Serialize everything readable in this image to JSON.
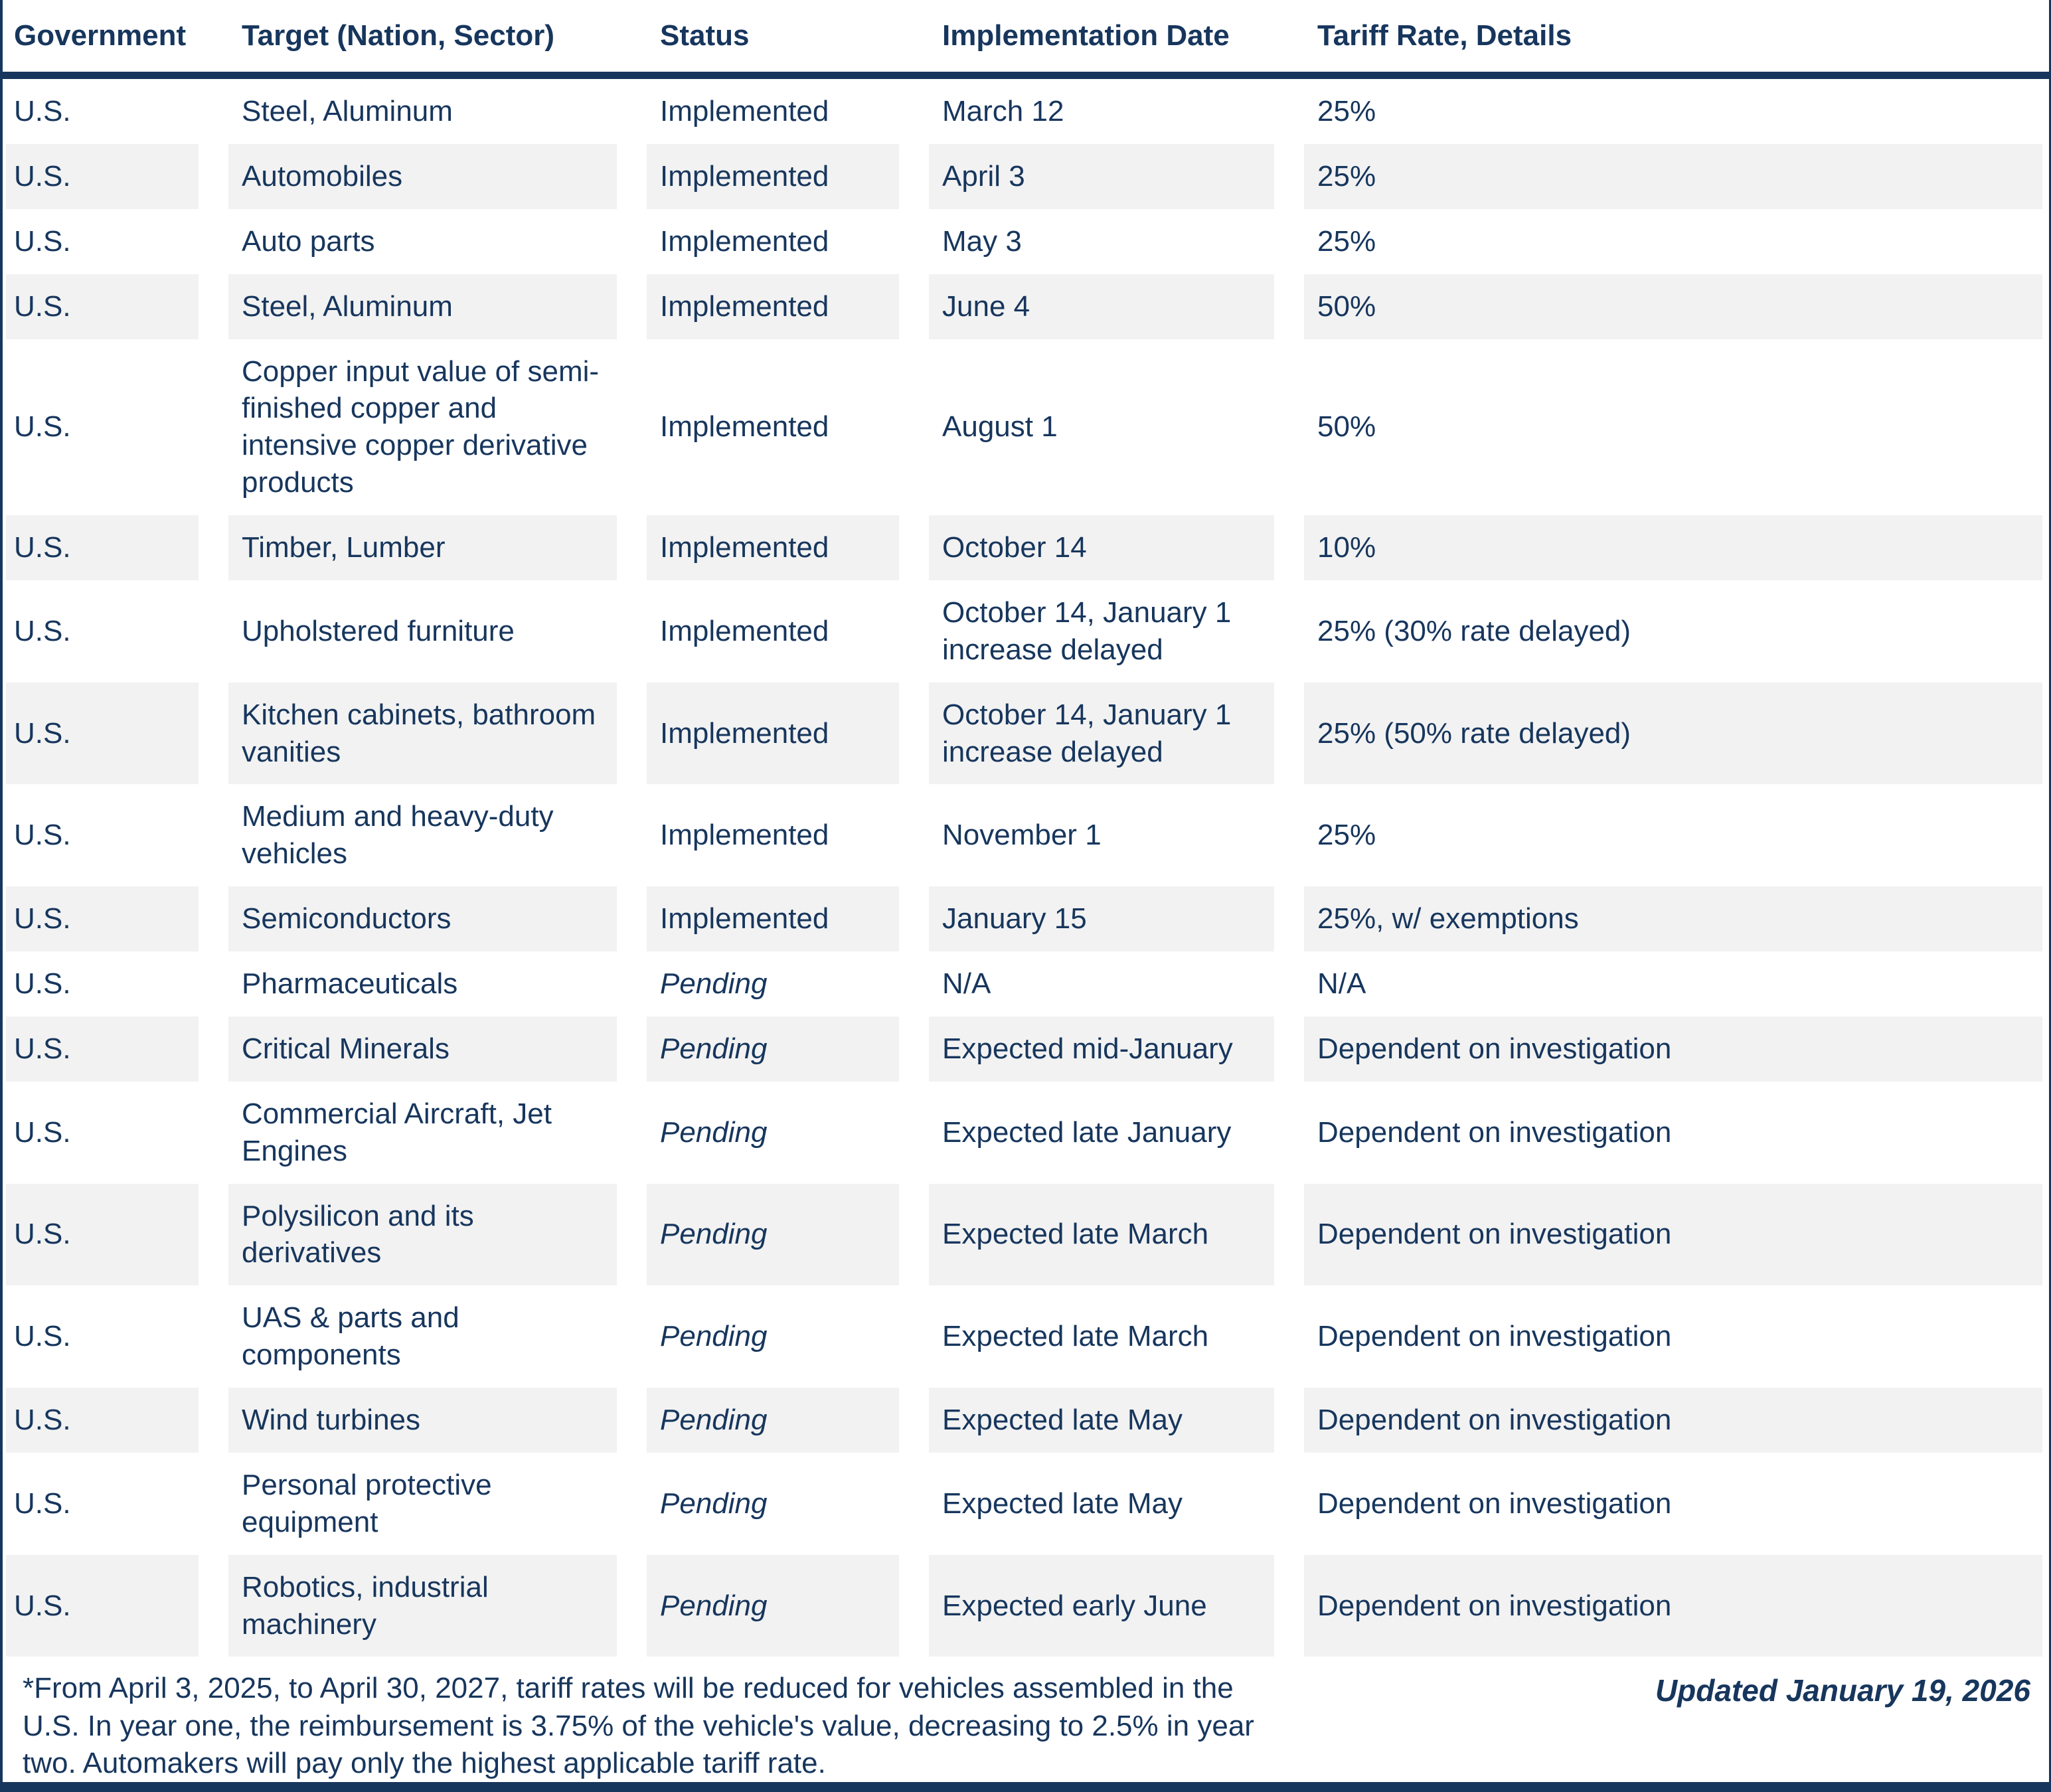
{
  "colors": {
    "navy": "#17365d",
    "row_alt": "#f2f2f2",
    "background": "#ffffff"
  },
  "presentation": {
    "italic_status": "Pending"
  },
  "chart_data": {
    "type": "table",
    "columns": [
      "Government",
      "Target (Nation, Sector)",
      "Status",
      "Implementation Date",
      "Tariff Rate, Details"
    ],
    "rows": [
      [
        "U.S.",
        "Steel, Aluminum",
        "Implemented",
        "March 12",
        "25%"
      ],
      [
        "U.S.",
        "Automobiles",
        "Implemented",
        "April 3",
        "25%"
      ],
      [
        "U.S.",
        "Auto parts",
        "Implemented",
        "May 3",
        "25%"
      ],
      [
        "U.S.",
        "Steel, Aluminum",
        "Implemented",
        "June 4",
        "50%"
      ],
      [
        "U.S.",
        "Copper input value of semi-finished copper and intensive copper derivative products",
        "Implemented",
        "August 1",
        "50%"
      ],
      [
        "U.S.",
        "Timber, Lumber",
        "Implemented",
        "October 14",
        "10%"
      ],
      [
        "U.S.",
        "Upholstered furniture",
        "Implemented",
        "October 14, January 1 increase delayed",
        "25% (30% rate delayed)"
      ],
      [
        "U.S.",
        "Kitchen cabinets, bathroom vanities",
        "Implemented",
        "October 14, January 1 increase delayed",
        "25% (50% rate delayed)"
      ],
      [
        "U.S.",
        "Medium and heavy-duty vehicles",
        "Implemented",
        "November 1",
        "25%"
      ],
      [
        "U.S.",
        "Semiconductors",
        "Implemented",
        "January 15",
        "25%, w/ exemptions"
      ],
      [
        "U.S.",
        "Pharmaceuticals",
        "Pending",
        "N/A",
        "N/A"
      ],
      [
        "U.S.",
        "Critical Minerals",
        "Pending",
        "Expected mid-January",
        "Dependent on investigation"
      ],
      [
        "U.S.",
        "Commercial Aircraft, Jet Engines",
        "Pending",
        "Expected late January",
        "Dependent on investigation"
      ],
      [
        "U.S.",
        "Polysilicon and its derivatives",
        "Pending",
        "Expected late March",
        "Dependent on investigation"
      ],
      [
        "U.S.",
        "UAS & parts and components",
        "Pending",
        "Expected late March",
        "Dependent on investigation"
      ],
      [
        "U.S.",
        "Wind turbines",
        "Pending",
        "Expected late May",
        "Dependent on investigation"
      ],
      [
        "U.S.",
        "Personal protective equipment",
        "Pending",
        "Expected late May",
        "Dependent on investigation"
      ],
      [
        "U.S.",
        "Robotics, industrial machinery",
        "Pending",
        "Expected early June",
        "Dependent on investigation"
      ]
    ]
  },
  "footnote": {
    "text": "*From April 3, 2025, to April 30, 2027, tariff rates will be reduced for vehicles assembled in the U.S. In year one, the reimbursement is 3.75% of the vehicle's value, decreasing to 2.5% in year two. Automakers will pay only the highest applicable tariff rate.",
    "updated": "Updated January 19, 2026"
  }
}
